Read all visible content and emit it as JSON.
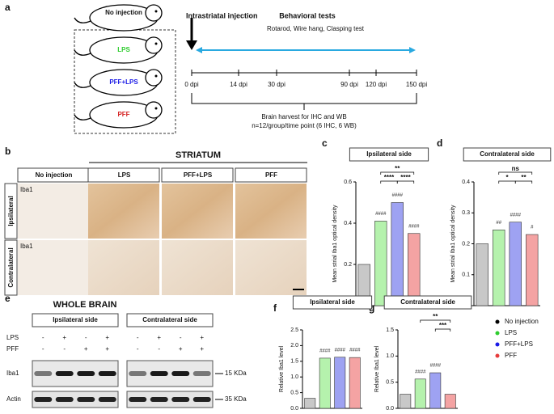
{
  "panels": {
    "a": "a",
    "b": "b",
    "c": "c",
    "d": "d",
    "e": "e",
    "f": "f",
    "g": "g"
  },
  "timeline": {
    "injection": "Intrastriatal injection",
    "behavior_title": "Behavioral tests",
    "behavior_tests": "Rotarod, Wire hang, Clasping test",
    "ticks": [
      "0 dpi",
      "14 dpi",
      "30 dpi",
      "90 dpi",
      "120 dpi",
      "150 dpi"
    ],
    "harvest": "Brain harvest for IHC and WB",
    "harvest_n": "n=12/group/time point (6 IHC, 6 WB)"
  },
  "mice": [
    "No injection",
    "LPS",
    "PFF+LPS",
    "PFF"
  ],
  "histology": {
    "title": "STRIATUM",
    "columns": [
      "No injection",
      "LPS",
      "PFF+LPS",
      "PFF"
    ],
    "rows": [
      "Ipsilateral",
      "Contralateral"
    ],
    "stain": "Iba1"
  },
  "blot": {
    "title": "WHOLE BRAIN",
    "sides": [
      "Ipsilateral side",
      "Contralateral side"
    ],
    "row_labels": [
      "LPS",
      "PFF"
    ],
    "lps": [
      "-",
      "+",
      "-",
      "+"
    ],
    "pff": [
      "-",
      "-",
      "+",
      "+"
    ],
    "proteins": [
      "Iba1",
      "Actin"
    ],
    "markers": [
      "15 KDa",
      "35 KDa"
    ]
  },
  "legend": [
    {
      "name": "No injection",
      "color": "#000000"
    },
    {
      "name": "LPS",
      "color": "#2ecc2e"
    },
    {
      "name": "PFF+LPS",
      "color": "#1a1ae6"
    },
    {
      "name": "PFF",
      "color": "#e63c3c"
    }
  ],
  "chart_data": [
    {
      "type": "bar",
      "title": "Ipsilateral side",
      "ylabel": "Mean strial Iba1 optical density",
      "values": [
        0.2,
        0.41,
        0.5,
        0.35
      ],
      "colors": [
        "#c8c8c8",
        "#b5f2ad",
        "#9ea2f2",
        "#f4a3a3"
      ],
      "ylim": [
        0,
        0.6
      ],
      "yticks": [
        {
          "value": 0,
          "label": "0.0"
        },
        0.2,
        0.4,
        0.6
      ],
      "annotations": [
        null,
        "####",
        "####",
        "####"
      ],
      "comparisons": [
        "**",
        "****",
        "****"
      ]
    },
    {
      "type": "bar",
      "title": "Contralateral side",
      "ylabel": "Mean strial Iba1 optical density",
      "values": [
        0.2,
        0.245,
        0.27,
        0.23
      ],
      "colors": [
        "#c8c8c8",
        "#b5f2ad",
        "#9ea2f2",
        "#f4a3a3"
      ],
      "ylim": [
        0,
        0.4
      ],
      "yticks": [
        {
          "value": 0,
          "label": "0.0"
        },
        0.1,
        0.2,
        0.3,
        0.4
      ],
      "annotations": [
        null,
        "##",
        "####",
        "#"
      ],
      "comparisons": [
        "ns",
        "*",
        "**"
      ]
    },
    {
      "type": "bar",
      "title": "Ipsilateral side",
      "ylabel": "Relative Iba1 level",
      "values": [
        0.32,
        1.6,
        1.63,
        1.62
      ],
      "colors": [
        "#c8c8c8",
        "#b5f2ad",
        "#9ea2f2",
        "#f4a3a3"
      ],
      "ylim": [
        0,
        2.5
      ],
      "yticks": [
        {
          "value": 0,
          "label": "0.0"
        },
        0.5,
        {
          "value": 1,
          "label": "1.0"
        },
        1.5,
        {
          "value": 2,
          "label": "2.0"
        },
        2.5
      ],
      "annotations": [
        null,
        "####",
        "####",
        "####"
      ],
      "comparisons": []
    },
    {
      "type": "bar",
      "title": "Contralateral side",
      "ylabel": "Relative Iba1 level",
      "values": [
        0.27,
        0.56,
        0.68,
        0.27
      ],
      "colors": [
        "#c8c8c8",
        "#b5f2ad",
        "#9ea2f2",
        "#f4a3a3"
      ],
      "ylim": [
        0,
        1.5
      ],
      "yticks": [
        {
          "value": 0,
          "label": "0.0"
        },
        0.5,
        {
          "value": 1,
          "label": "1.0"
        },
        1.5
      ],
      "annotations": [
        null,
        "####",
        "####",
        null
      ],
      "comparisons": [
        "**",
        "***"
      ]
    }
  ]
}
